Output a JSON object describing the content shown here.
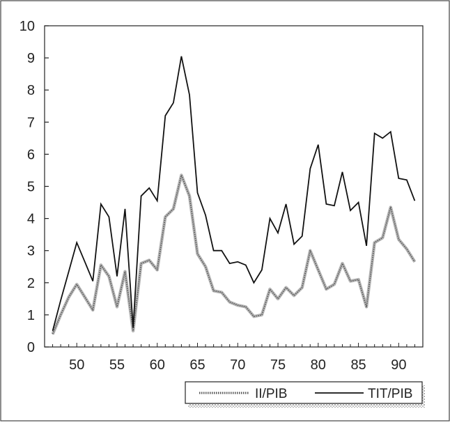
{
  "chart_data": {
    "type": "line",
    "title": "",
    "xlabel": "",
    "ylabel": "",
    "xlim": [
      46,
      93
    ],
    "ylim": [
      0,
      10
    ],
    "x_ticks": [
      50,
      55,
      60,
      65,
      70,
      75,
      80,
      85,
      90
    ],
    "y_ticks": [
      0,
      1,
      2,
      3,
      4,
      5,
      6,
      7,
      8,
      9,
      10
    ],
    "grid": false,
    "legend_position": "bottom-right",
    "x": [
      47,
      48,
      49,
      50,
      51,
      52,
      53,
      54,
      55,
      56,
      57,
      58,
      59,
      60,
      61,
      62,
      63,
      64,
      65,
      66,
      67,
      68,
      69,
      70,
      71,
      72,
      73,
      74,
      75,
      76,
      77,
      78,
      79,
      80,
      81,
      82,
      83,
      84,
      85,
      86,
      87,
      88,
      89,
      90,
      91,
      92
    ],
    "series": [
      {
        "name": "II/PIB",
        "color": "#8a8a8a",
        "style": "dotted-band",
        "values": [
          0.4,
          1.0,
          1.55,
          1.95,
          1.55,
          1.15,
          2.55,
          2.2,
          1.25,
          2.35,
          0.5,
          2.6,
          2.7,
          2.4,
          4.05,
          4.3,
          5.35,
          4.7,
          2.9,
          2.5,
          1.75,
          1.7,
          1.4,
          1.3,
          1.25,
          0.95,
          1.0,
          1.8,
          1.5,
          1.85,
          1.6,
          1.85,
          3.0,
          2.4,
          1.8,
          1.95,
          2.6,
          2.05,
          2.1,
          1.25,
          3.25,
          3.4,
          4.35,
          3.35,
          3.05,
          2.65
        ]
      },
      {
        "name": "TIT/PIB",
        "color": "#111111",
        "style": "solid",
        "values": [
          0.5,
          1.45,
          2.35,
          3.25,
          2.65,
          2.05,
          4.45,
          4.05,
          2.2,
          4.3,
          0.6,
          4.7,
          4.95,
          4.55,
          7.2,
          7.6,
          9.05,
          7.85,
          4.8,
          4.1,
          3.0,
          3.0,
          2.6,
          2.65,
          2.55,
          2.0,
          2.4,
          4.0,
          3.55,
          4.45,
          3.2,
          3.45,
          5.55,
          6.3,
          4.45,
          4.4,
          5.45,
          4.25,
          4.5,
          3.15,
          6.65,
          6.5,
          6.7,
          5.25,
          5.2,
          4.55
        ]
      }
    ]
  }
}
